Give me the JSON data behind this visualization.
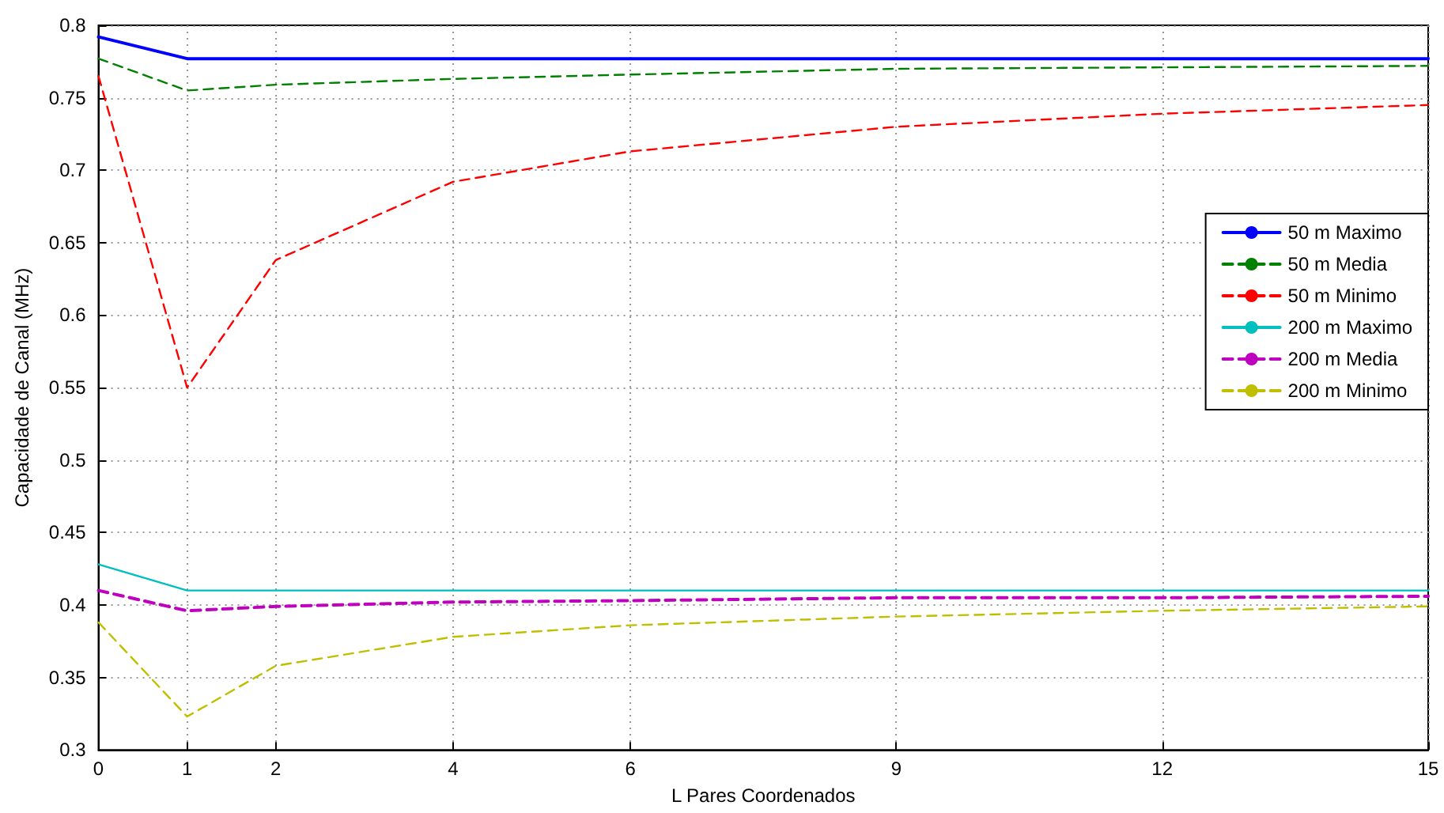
{
  "chart_data": {
    "type": "line",
    "xlabel": "L Pares Coordenados",
    "ylabel": "Capacidade de Canal (MHz)",
    "x": [
      0,
      1,
      2,
      4,
      6,
      9,
      12,
      15
    ],
    "xlim": [
      0,
      15
    ],
    "xticks": [
      0,
      1,
      2,
      4,
      6,
      9,
      12,
      15
    ],
    "ylim": [
      0.3,
      0.8
    ],
    "yticks": [
      0.3,
      0.35,
      0.4,
      0.45,
      0.5,
      0.55,
      0.6,
      0.65,
      0.7,
      0.75,
      0.8
    ],
    "grid": true,
    "legend": "right",
    "marker": "none",
    "series": [
      {
        "name": "50 m Maximo",
        "color": "#0000ff",
        "line_style": "solid",
        "values": [
          0.792,
          0.777,
          0.777,
          0.777,
          0.777,
          0.777,
          0.777,
          0.777
        ]
      },
      {
        "name": "50 m Media",
        "color": "#008000",
        "line_style": "dashed",
        "values": [
          0.777,
          0.755,
          0.759,
          0.763,
          0.766,
          0.77,
          0.771,
          0.772
        ]
      },
      {
        "name": "50 m Minimo",
        "color": "#ff0000",
        "line_style": "dashed",
        "values": [
          0.765,
          0.55,
          0.638,
          0.692,
          0.713,
          0.73,
          0.739,
          0.745
        ]
      },
      {
        "name": "200 m Maximo",
        "color": "#00bfbf",
        "line_style": "solid",
        "values": [
          0.428,
          0.41,
          0.41,
          0.41,
          0.41,
          0.41,
          0.41,
          0.41
        ]
      },
      {
        "name": "200 m Media",
        "color": "#bf00bf",
        "line_style": "dashed",
        "values": [
          0.41,
          0.396,
          0.399,
          0.402,
          0.403,
          0.405,
          0.405,
          0.406
        ]
      },
      {
        "name": "200 m Minimo",
        "color": "#bfbf00",
        "line_style": "dashed",
        "values": [
          0.388,
          0.323,
          0.358,
          0.378,
          0.386,
          0.392,
          0.396,
          0.399
        ]
      }
    ]
  }
}
